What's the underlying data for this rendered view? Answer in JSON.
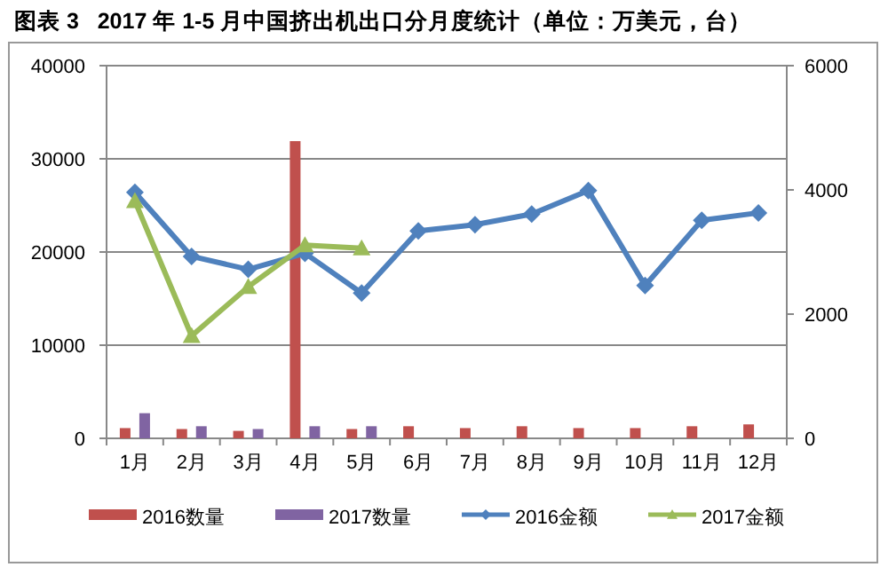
{
  "chart_data": {
    "type": "bar",
    "title": "图表 3   2017 年 1-5 月中国挤出机出口分月度统计（单位：万美元，台）",
    "categories": [
      "1月",
      "2月",
      "3月",
      "4月",
      "5月",
      "6月",
      "7月",
      "8月",
      "9月",
      "10月",
      "11月",
      "12月"
    ],
    "series": [
      {
        "name": "2016数量",
        "color": "#c0504d",
        "values": [
          1100,
          1000,
          800,
          31900,
          1000,
          1300,
          1100,
          1300,
          1100,
          1100,
          1300,
          1500
        ]
      },
      {
        "name": "2017数量",
        "color": "#8064a2",
        "values": [
          2700,
          1300,
          1000,
          1300,
          1300,
          null,
          null,
          null,
          null,
          null,
          null,
          null
        ]
      },
      {
        "name": "2016金额",
        "type": "line",
        "axis": "y2",
        "marker": "diamond",
        "color": "#4f81bd",
        "values": [
          3960,
          2930,
          2720,
          2980,
          2340,
          3340,
          3440,
          3610,
          3990,
          2460,
          3510,
          3630
        ]
      },
      {
        "name": "2017金额",
        "type": "line",
        "axis": "y2",
        "marker": "triangle",
        "color": "#9bbb59",
        "values": [
          3820,
          1650,
          2440,
          3110,
          3060,
          null,
          null,
          null,
          null,
          null,
          null,
          null
        ]
      }
    ],
    "ylim": [
      0,
      40000
    ],
    "yticks": [
      0,
      10000,
      20000,
      30000,
      40000
    ],
    "y2lim": [
      0,
      6000
    ],
    "y2ticks": [
      0,
      2000,
      4000,
      6000
    ],
    "grid": "y",
    "legend": "bottom"
  }
}
